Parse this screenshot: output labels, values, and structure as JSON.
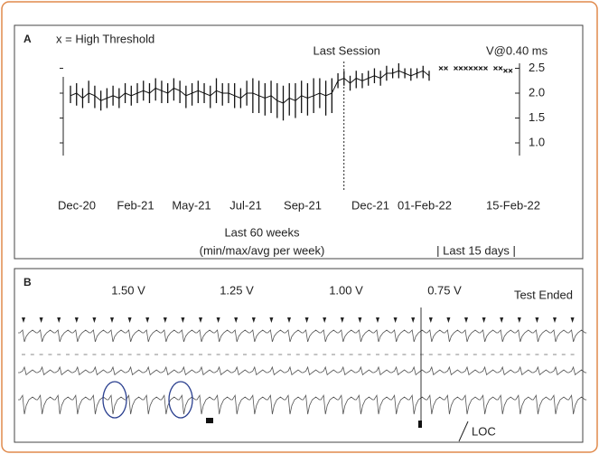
{
  "chart_data": {
    "type": "range",
    "panel_label": "A",
    "legend_text": "x = High Threshold",
    "annotations": {
      "session": "Last Session",
      "unit": "V@0.40 ms",
      "weeks": "Last 60 weeks",
      "weeks_note": "(min/max/avg per week)",
      "days": "| Last 15 days |"
    },
    "x_labels": [
      "Dec-20",
      "Feb-21",
      "May-21",
      "Jul-21",
      "Sep-21",
      "Dec-21",
      "01-Feb-22",
      "15-Feb-22"
    ],
    "ylim": [
      0.8,
      2.7
    ],
    "yticks": [
      {
        "value": 1,
        "label": "1.0"
      },
      1.5,
      {
        "value": 2,
        "label": "2.0"
      },
      2.5
    ],
    "color": "#111111",
    "weekly": {
      "avg": [
        1.95,
        2.0,
        1.9,
        2.0,
        1.95,
        1.85,
        1.9,
        1.95,
        1.9,
        2.0,
        1.95,
        2.0,
        2.05,
        2.0,
        2.1,
        2.05,
        2.0,
        2.1,
        2.05,
        1.95,
        2.0,
        2.05,
        2.0,
        1.95,
        2.05,
        2.0,
        2.0,
        1.95,
        1.9,
        2.0,
        2.0,
        1.95,
        1.9,
        1.95,
        1.85,
        1.8,
        1.9,
        1.85,
        1.95,
        1.9,
        1.95,
        2.0,
        1.95,
        2.0,
        2.25,
        2.3,
        2.2,
        2.3,
        2.25,
        2.3,
        2.35,
        2.3,
        2.4,
        2.4,
        2.45,
        2.4,
        2.35,
        2.4,
        2.45,
        2.35
      ],
      "min": [
        1.8,
        1.75,
        1.7,
        1.8,
        1.7,
        1.65,
        1.7,
        1.75,
        1.7,
        1.8,
        1.75,
        1.8,
        1.85,
        1.8,
        1.85,
        1.8,
        1.8,
        1.85,
        1.8,
        1.7,
        1.75,
        1.8,
        1.8,
        1.7,
        1.8,
        1.75,
        1.8,
        1.7,
        1.7,
        1.75,
        1.6,
        1.6,
        1.55,
        1.6,
        1.5,
        1.45,
        1.55,
        1.5,
        1.6,
        1.55,
        1.6,
        1.7,
        1.55,
        1.6,
        2.1,
        2.15,
        2.05,
        2.1,
        2.1,
        2.15,
        2.2,
        2.15,
        2.25,
        2.3,
        2.3,
        2.3,
        2.25,
        2.3,
        2.3,
        2.25
      ],
      "max": [
        2.15,
        2.2,
        2.1,
        2.25,
        2.15,
        2.05,
        2.1,
        2.15,
        2.1,
        2.2,
        2.15,
        2.2,
        2.25,
        2.2,
        2.3,
        2.25,
        2.2,
        2.3,
        2.25,
        2.15,
        2.2,
        2.25,
        2.2,
        2.15,
        2.3,
        2.2,
        2.2,
        2.2,
        2.1,
        2.25,
        2.3,
        2.25,
        2.2,
        2.25,
        2.2,
        2.15,
        2.2,
        2.2,
        2.25,
        2.2,
        2.3,
        2.3,
        2.25,
        2.3,
        2.4,
        2.45,
        2.35,
        2.45,
        2.4,
        2.45,
        2.5,
        2.45,
        2.55,
        2.5,
        2.6,
        2.5,
        2.5,
        2.5,
        2.55,
        2.45
      ]
    },
    "daily": {
      "values": [
        2.5,
        2.5,
        null,
        2.5,
        2.5,
        2.5,
        2.5,
        2.5,
        2.5,
        2.5,
        null,
        2.5,
        2.5,
        2.45,
        2.45
      ]
    }
  },
  "panel_b": {
    "label": "B",
    "voltages": [
      "1.50 V",
      "1.25 V",
      "1.00 V",
      "0.75 V"
    ],
    "status": "Test Ended",
    "marker": "LOC"
  }
}
